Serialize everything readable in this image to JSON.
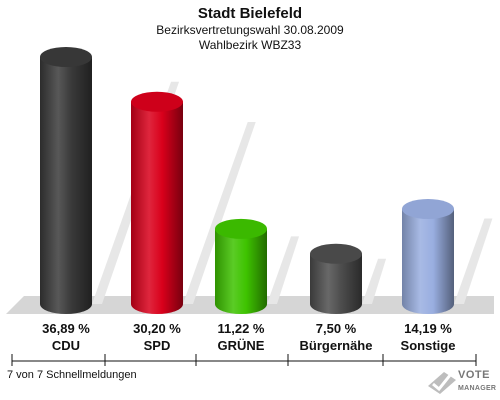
{
  "chart_data": {
    "type": "bar",
    "title": "Stadt Bielefeld",
    "subtitle": "Bezirksvertretungswahl 30.08.2009",
    "subtitle2": "Wahlbezirk WBZ33",
    "categories": [
      "CDU",
      "SPD",
      "GRÜNE",
      "Bürgernähe",
      "Sonstige"
    ],
    "values": [
      36.89,
      30.2,
      11.22,
      7.5,
      14.19
    ],
    "value_labels": [
      "36,89 %",
      "30,20 %",
      "11,22 %",
      "7,50 %",
      "14,19 %"
    ],
    "colors": [
      "#3a3a3a",
      "#d9001b",
      "#3ec300",
      "#4d4d4d",
      "#99aee0"
    ],
    "ylim": [
      0,
      40
    ],
    "xlabel": "",
    "ylabel": "",
    "grid": false
  },
  "footer": {
    "note": "7 von 7 Schnellmeldungen"
  },
  "logo": {
    "line1": "VOTE",
    "line2": "MANAGER",
    "icon": "ballot-check-icon"
  }
}
